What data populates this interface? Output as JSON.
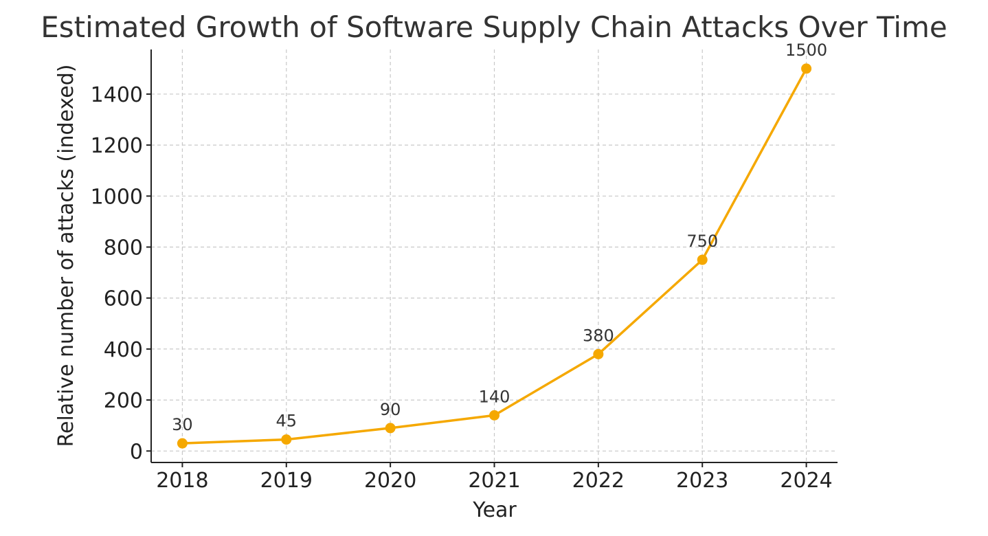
{
  "chart_data": {
    "type": "line",
    "title": "Estimated Growth of Software Supply Chain Attacks Over Time",
    "xlabel": "Year",
    "ylabel": "Relative number of attacks (indexed)",
    "x": [
      2018,
      2019,
      2020,
      2021,
      2022,
      2023,
      2024
    ],
    "x_tick_labels": [
      "2018",
      "2019",
      "2020",
      "2021",
      "2022",
      "2023",
      "2024"
    ],
    "values": [
      30,
      45,
      90,
      140,
      380,
      750,
      1500
    ],
    "data_labels": [
      "30",
      "45",
      "90",
      "140",
      "380",
      "750",
      "1500"
    ],
    "y_ticks": [
      0,
      200,
      400,
      600,
      800,
      1000,
      1200,
      1400
    ],
    "y_tick_labels": [
      "0",
      "200",
      "400",
      "600",
      "800",
      "1000",
      "1200",
      "1400"
    ],
    "ylim": [
      -45,
      1575
    ],
    "xlim": [
      2017.7,
      2024.3
    ],
    "grid": true,
    "line_color": "#F5A800",
    "marker": "circle"
  }
}
